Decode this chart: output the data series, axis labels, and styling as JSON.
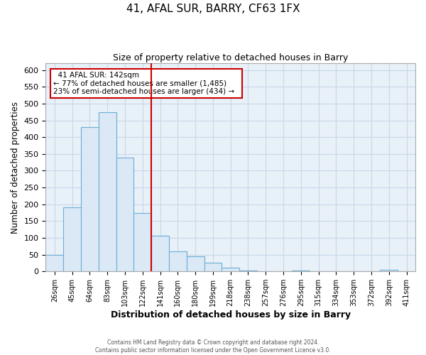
{
  "title": "41, AFAL SUR, BARRY, CF63 1FX",
  "subtitle": "Size of property relative to detached houses in Barry",
  "xlabel": "Distribution of detached houses by size in Barry",
  "ylabel": "Number of detached properties",
  "bar_labels": [
    "26sqm",
    "45sqm",
    "64sqm",
    "83sqm",
    "103sqm",
    "122sqm",
    "141sqm",
    "160sqm",
    "180sqm",
    "199sqm",
    "218sqm",
    "238sqm",
    "257sqm",
    "276sqm",
    "295sqm",
    "315sqm",
    "334sqm",
    "353sqm",
    "372sqm",
    "392sqm",
    "411sqm"
  ],
  "bar_heights": [
    50,
    190,
    430,
    475,
    340,
    175,
    107,
    60,
    44,
    25,
    10,
    2,
    0,
    0,
    3,
    0,
    0,
    0,
    0,
    4,
    0
  ],
  "bar_color": "#dbe8f6",
  "bar_edge_color": "#6baed6",
  "vline_x": 5.5,
  "vline_color": "#cc0000",
  "annotation_title": "41 AFAL SUR: 142sqm",
  "annotation_line1": "← 77% of detached houses are smaller (1,485)",
  "annotation_line2": "23% of semi-detached houses are larger (434) →",
  "annotation_box_edge": "#cc0000",
  "ylim": [
    0,
    620
  ],
  "yticks": [
    0,
    50,
    100,
    150,
    200,
    250,
    300,
    350,
    400,
    450,
    500,
    550,
    600
  ],
  "footer1": "Contains HM Land Registry data © Crown copyright and database right 2024.",
  "footer2": "Contains public sector information licensed under the Open Government Licence v3.0.",
  "background_color": "#ffffff",
  "grid_color": "#c8d8e8"
}
